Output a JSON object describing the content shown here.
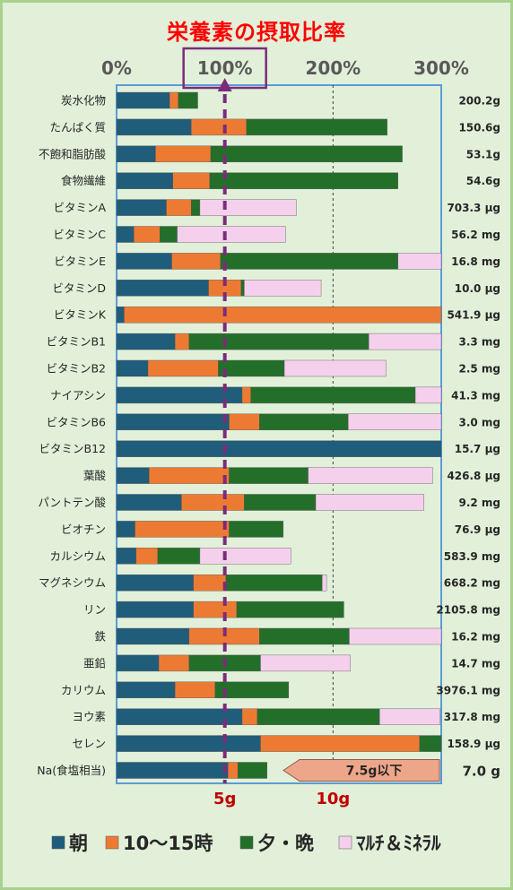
{
  "colors": {
    "breakfast": "#1f5d7a",
    "snack": "#ed7a33",
    "dinner": "#236f2a",
    "supplement": "#f5d0ec",
    "target_line": "#7b2c7b",
    "plot_border": "#5b9bd5",
    "note_fill": "#eea68a"
  },
  "chart_data": {
    "type": "bar",
    "orientation": "horizontal",
    "stacked": true,
    "title": "栄養素の摂取比率",
    "xlim": [
      0,
      300
    ],
    "x_ticks": [
      "0%",
      "100%",
      "200%",
      "300%"
    ],
    "x_tick_values": [
      0,
      100,
      200,
      300
    ],
    "highlight_tick": "100%",
    "reference_line": 100,
    "categories": [
      "炭水化物",
      "たんぱく質",
      "不飽和脂肪酸",
      "食物繊維",
      "ビタミンA",
      "ビタミンC",
      "ビタミンE",
      "ビタミンD",
      "ビタミンK",
      "ビタミンB1",
      "ビタミンB2",
      "ナイアシン",
      "ビタミンB6",
      "ビタミンB12",
      "葉酸",
      "パントテン酸",
      "ビオチン",
      "カルシウム",
      "マグネシウム",
      "リン",
      "鉄",
      "亜鉛",
      "カリウム",
      "ヨウ素",
      "セレン",
      "Na(食塩相当)"
    ],
    "amounts": [
      "200.2g",
      "150.6g",
      "53.1g",
      "54.6g",
      "703.3 μg",
      "56.2 mg",
      "16.8 mg",
      "10.0 μg",
      "541.9 μg",
      "3.3 mg",
      "2.5 mg",
      "41.3 mg",
      "3.0 mg",
      "15.7 μg",
      "426.8 μg",
      "9.2 mg",
      "76.9 μg",
      "583.9 mg",
      "668.2 mg",
      "2105.8 mg",
      "16.2 mg",
      "14.7 mg",
      "3976.1 mg",
      "317.8 mg",
      "158.9 μg",
      "7.0 g"
    ],
    "series": [
      {
        "name": "朝",
        "color_key": "breakfast",
        "values": [
          49,
          69,
          36,
          52,
          46,
          16,
          51,
          85,
          7,
          54,
          29,
          116,
          104,
          300,
          30,
          60,
          17,
          18,
          71,
          71,
          67,
          39,
          54,
          116,
          133,
          103
        ]
      },
      {
        "name": "10〜15時",
        "color_key": "snack",
        "values": [
          8,
          51,
          51,
          34,
          23,
          24,
          45,
          30,
          293,
          13,
          65,
          8,
          28,
          0,
          74,
          58,
          87,
          20,
          30,
          40,
          65,
          28,
          37,
          14,
          147,
          9
        ]
      },
      {
        "name": "夕・晩",
        "color_key": "dinner",
        "values": [
          18,
          130,
          177,
          174,
          8,
          16,
          164,
          3,
          0,
          166,
          61,
          152,
          82,
          0,
          73,
          66,
          50,
          39,
          89,
          99,
          83,
          66,
          68,
          113,
          20,
          27
        ]
      },
      {
        "name": "ﾏﾙﾁ＆ﾐﾈﾗﾙ",
        "color_key": "supplement",
        "values": [
          0,
          0,
          0,
          0,
          89,
          100,
          40,
          71,
          0,
          67,
          94,
          25,
          86,
          0,
          115,
          100,
          0,
          84,
          4,
          0,
          85,
          83,
          0,
          56,
          0,
          0
        ]
      }
    ],
    "salt_axis": {
      "labels": [
        "5g",
        "10g"
      ],
      "values": [
        5,
        10
      ]
    },
    "salt_note": "7.5g以下",
    "legend_position": "bottom",
    "grid": "dashed vertical at 200%"
  }
}
